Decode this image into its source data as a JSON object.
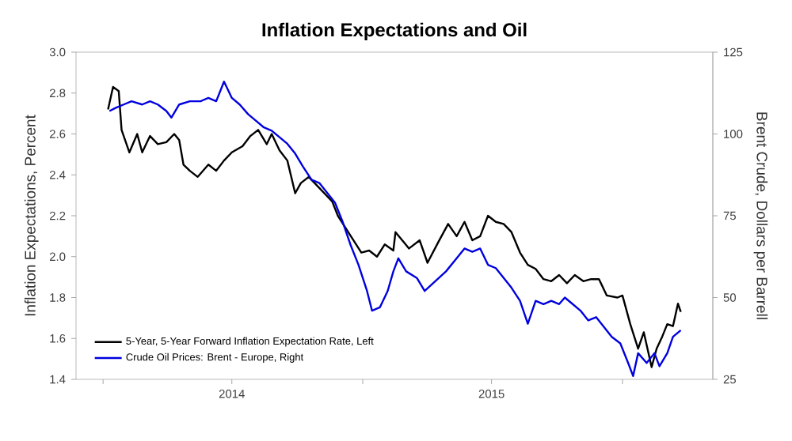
{
  "chart_data": {
    "type": "line",
    "title": "Inflation Expectations and Oil",
    "ylabel": "Inflation Expectations, Percent",
    "y2label": "Brent Crude, Dollars per Barrell",
    "xlim": [
      "2013-11-24",
      "2016-05-07"
    ],
    "xticks": [
      {
        "value": "2014-01-01",
        "label": null
      },
      {
        "value": "2014-07-01",
        "label": "2014"
      },
      {
        "value": "2015-01-01",
        "label": null
      },
      {
        "value": "2015-07-01",
        "label": "2015"
      },
      {
        "value": "2016-01-01",
        "label": null
      }
    ],
    "ylim": [
      1.4,
      3.0
    ],
    "yticks": [
      1.4,
      1.6,
      1.8,
      {
        "value": 2.0,
        "label": "2.0"
      },
      2.2,
      2.4,
      2.6,
      2.8,
      {
        "value": 3.0,
        "label": "3.0"
      }
    ],
    "y2lim": [
      25,
      125
    ],
    "y2ticks": [
      25,
      50,
      75,
      100,
      125
    ],
    "legend": "bottom left",
    "marker": "none",
    "line_style": "solid",
    "series": [
      {
        "name": "5-Year, 5-Year Forward Inflation Expectation Rate, Left",
        "color": "#000000",
        "x": [
          "2014-01-08",
          "2014-01-15",
          "2014-01-23",
          "2014-01-27",
          "2014-02-07",
          "2014-02-18",
          "2014-02-25",
          "2014-03-08",
          "2014-03-19",
          "2014-03-31",
          "2014-04-11",
          "2014-04-18",
          "2014-04-24",
          "2014-05-03",
          "2014-05-14",
          "2014-05-29",
          "2014-06-09",
          "2014-06-20",
          "2014-07-01",
          "2014-07-16",
          "2014-07-27",
          "2014-08-07",
          "2014-08-19",
          "2014-08-26",
          "2014-09-06",
          "2014-09-17",
          "2014-09-28",
          "2014-10-06",
          "2014-10-17",
          "2014-10-28",
          "2014-11-08",
          "2014-11-19",
          "2014-11-27",
          "2014-12-08",
          "2014-12-19",
          "2014-12-30",
          "2015-01-10",
          "2015-01-21",
          "2015-02-01",
          "2015-02-13",
          "2015-02-16",
          "2015-03-07",
          "2015-03-22",
          "2015-04-02",
          "2015-04-17",
          "2015-05-01",
          "2015-05-13",
          "2015-05-24",
          "2015-06-04",
          "2015-06-15",
          "2015-06-26",
          "2015-07-07",
          "2015-07-18",
          "2015-07-29",
          "2015-08-10",
          "2015-08-21",
          "2015-09-01",
          "2015-09-12",
          "2015-09-23",
          "2015-10-04",
          "2015-10-15",
          "2015-10-26",
          "2015-11-07",
          "2015-11-18",
          "2015-11-29",
          "2015-12-10",
          "2015-12-25",
          "2016-01-01",
          "2016-01-12",
          "2016-01-23",
          "2016-01-31",
          "2016-02-11",
          "2016-02-18",
          "2016-02-26",
          "2016-03-04",
          "2016-03-12",
          "2016-03-19",
          "2016-03-23"
        ],
        "values": [
          2.72,
          2.83,
          2.81,
          2.62,
          2.51,
          2.6,
          2.51,
          2.59,
          2.55,
          2.56,
          2.6,
          2.57,
          2.45,
          2.42,
          2.39,
          2.45,
          2.42,
          2.47,
          2.51,
          2.54,
          2.59,
          2.62,
          2.55,
          2.6,
          2.52,
          2.47,
          2.31,
          2.36,
          2.39,
          2.35,
          2.31,
          2.27,
          2.2,
          2.14,
          2.08,
          2.02,
          2.03,
          2.0,
          2.06,
          2.03,
          2.12,
          2.04,
          2.08,
          1.97,
          2.07,
          2.16,
          2.1,
          2.17,
          2.08,
          2.1,
          2.2,
          2.17,
          2.16,
          2.12,
          2.02,
          1.96,
          1.94,
          1.89,
          1.88,
          1.91,
          1.87,
          1.91,
          1.88,
          1.89,
          1.89,
          1.81,
          1.8,
          1.81,
          1.67,
          1.55,
          1.63,
          1.46,
          1.55,
          1.61,
          1.67,
          1.66,
          1.77,
          1.73
        ]
      },
      {
        "name": "Crude Oil Prices: Brent - Europe, Right",
        "color": "#0000e0",
        "axis": "y2",
        "x": [
          "2014-01-10",
          "2014-01-19",
          "2014-01-30",
          "2014-02-10",
          "2014-02-25",
          "2014-03-08",
          "2014-03-19",
          "2014-03-31",
          "2014-04-07",
          "2014-04-18",
          "2014-05-03",
          "2014-05-18",
          "2014-05-29",
          "2014-06-09",
          "2014-06-20",
          "2014-07-01",
          "2014-07-12",
          "2014-07-24",
          "2014-08-04",
          "2014-08-15",
          "2014-08-26",
          "2014-09-06",
          "2014-09-17",
          "2014-09-28",
          "2014-10-09",
          "2014-10-21",
          "2014-11-01",
          "2014-11-12",
          "2014-11-23",
          "2014-12-04",
          "2014-12-15",
          "2014-12-26",
          "2015-01-07",
          "2015-01-14",
          "2015-01-25",
          "2015-02-05",
          "2015-02-13",
          "2015-02-20",
          "2015-03-03",
          "2015-03-18",
          "2015-03-29",
          "2015-04-13",
          "2015-04-28",
          "2015-05-13",
          "2015-05-24",
          "2015-06-04",
          "2015-06-15",
          "2015-06-26",
          "2015-07-07",
          "2015-07-18",
          "2015-07-29",
          "2015-08-10",
          "2015-08-21",
          "2015-09-01",
          "2015-09-12",
          "2015-09-23",
          "2015-10-04",
          "2015-10-12",
          "2015-10-23",
          "2015-11-03",
          "2015-11-14",
          "2015-11-25",
          "2015-12-06",
          "2015-12-17",
          "2015-12-29",
          "2016-01-09",
          "2016-01-16",
          "2016-01-23",
          "2016-02-04",
          "2016-02-15",
          "2016-02-22",
          "2016-03-04",
          "2016-03-12",
          "2016-03-23"
        ],
        "values": [
          107,
          108,
          109,
          110,
          109,
          110,
          109,
          107,
          105,
          109,
          110,
          110,
          111,
          110,
          116,
          111,
          109,
          106,
          104,
          102,
          101,
          99,
          97,
          94,
          90,
          86,
          85,
          82,
          79,
          73,
          66,
          60,
          52,
          46,
          47,
          52,
          58,
          62,
          58,
          56,
          52,
          55,
          58,
          62,
          65,
          64,
          65,
          60,
          59,
          56,
          53,
          49,
          42,
          49,
          48,
          49,
          48,
          50,
          48,
          46,
          43,
          44,
          41,
          38,
          36,
          30,
          26,
          33,
          30,
          33,
          29,
          33,
          38,
          40
        ]
      }
    ]
  }
}
